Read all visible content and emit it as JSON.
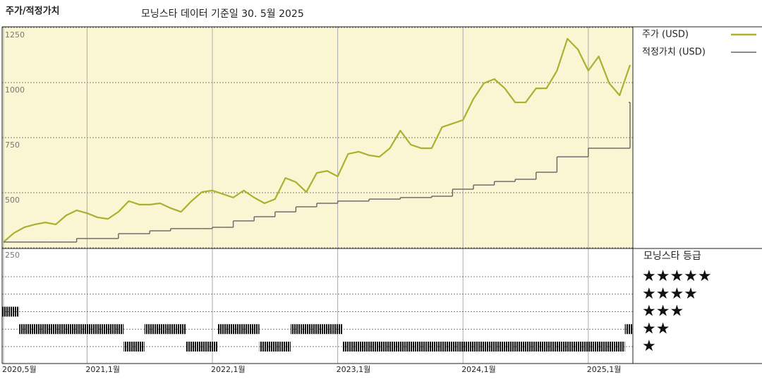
{
  "chart_data": {
    "type": "line",
    "title": "주가/적정가치",
    "subtitle": "모닝스타 데이터 기준일 30. 5월 2025",
    "x": [
      "2020-05",
      "2020-06",
      "2020-07",
      "2020-08",
      "2020-09",
      "2020-10",
      "2020-11",
      "2020-12",
      "2021-01",
      "2021-02",
      "2021-03",
      "2021-04",
      "2021-05",
      "2021-06",
      "2021-07",
      "2021-08",
      "2021-09",
      "2021-10",
      "2021-11",
      "2021-12",
      "2022-01",
      "2022-02",
      "2022-03",
      "2022-04",
      "2022-05",
      "2022-06",
      "2022-07",
      "2022-08",
      "2022-09",
      "2022-10",
      "2022-11",
      "2022-12",
      "2023-01",
      "2023-02",
      "2023-03",
      "2023-04",
      "2023-05",
      "2023-06",
      "2023-07",
      "2023-08",
      "2023-09",
      "2023-10",
      "2023-11",
      "2023-12",
      "2024-01",
      "2024-02",
      "2024-03",
      "2024-04",
      "2024-05",
      "2024-06",
      "2024-07",
      "2024-08",
      "2024-09",
      "2024-10",
      "2024-11",
      "2024-12",
      "2025-01",
      "2025-02",
      "2025-03",
      "2025-04",
      "2025-05"
    ],
    "series": [
      {
        "name": "주가 (USD)",
        "color": "#a9b12f",
        "style": "line",
        "values": [
          276,
          317,
          343,
          356,
          365,
          356,
          397,
          420,
          407,
          388,
          381,
          413,
          462,
          446,
          446,
          452,
          430,
          413,
          462,
          503,
          510,
          494,
          478,
          510,
          478,
          452,
          471,
          567,
          548,
          503,
          590,
          599,
          574,
          676,
          686,
          670,
          663,
          702,
          782,
          718,
          702,
          702,
          798,
          814,
          830,
          926,
          997,
          1016,
          974,
          910,
          910,
          974,
          974,
          1054,
          1199,
          1151,
          1054,
          1119,
          997,
          942,
          1080
        ]
      },
      {
        "name": "적정가치 (USD)",
        "color": "#666666",
        "style": "step",
        "values": [
          276,
          276,
          276,
          276,
          276,
          276,
          276,
          292,
          292,
          292,
          292,
          314,
          314,
          314,
          327,
          327,
          337,
          337,
          337,
          337,
          343,
          343,
          372,
          372,
          391,
          391,
          413,
          413,
          436,
          436,
          452,
          452,
          462,
          462,
          462,
          471,
          471,
          471,
          478,
          478,
          478,
          484,
          484,
          516,
          516,
          535,
          535,
          551,
          551,
          561,
          561,
          593,
          593,
          663,
          663,
          663,
          702,
          702,
          702,
          702,
          910
        ]
      }
    ],
    "xlim": [
      "2020-05",
      "2025-05"
    ],
    "xticks": [
      {
        "value": "2020-05",
        "label": "2020,5월"
      },
      {
        "value": "2021-01",
        "label": "2021,1월"
      },
      {
        "value": "2022-01",
        "label": "2022,1월"
      },
      {
        "value": "2023-01",
        "label": "2023,1월"
      },
      {
        "value": "2024-01",
        "label": "2024,1월"
      },
      {
        "value": "2025-01",
        "label": "2025,1월"
      }
    ],
    "ylim": [
      250,
      1250
    ],
    "yticks": [
      250,
      500,
      750,
      1000,
      1250
    ],
    "grid": true,
    "background": "#faf6d3",
    "legend": "right",
    "ratings": {
      "title": "모닝스타 등급",
      "labels": [
        "★",
        "★★",
        "★★★",
        "★★★★",
        "★★★★★"
      ],
      "color": "#111111",
      "values": [
        3,
        3,
        2,
        2,
        2,
        2,
        2,
        2,
        2,
        2,
        2,
        2,
        1,
        1,
        2,
        2,
        2,
        2,
        1,
        1,
        1,
        2,
        2,
        2,
        2,
        1,
        1,
        1,
        2,
        2,
        2,
        2,
        2,
        1,
        1,
        1,
        1,
        1,
        1,
        1,
        1,
        1,
        1,
        1,
        1,
        1,
        1,
        1,
        1,
        1,
        1,
        1,
        1,
        1,
        1,
        1,
        1,
        1,
        1,
        1,
        2
      ]
    }
  }
}
